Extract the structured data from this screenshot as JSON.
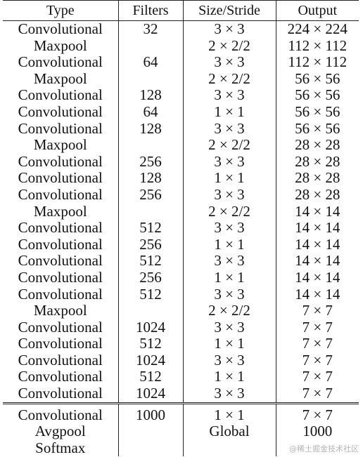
{
  "columns": [
    "Type",
    "Filters",
    "Size/Stride",
    "Output"
  ],
  "rows": [
    [
      "Convolutional",
      "32",
      "3 × 3",
      "224 × 224"
    ],
    [
      "Maxpool",
      "",
      "2 × 2/2",
      "112 × 112"
    ],
    [
      "Convolutional",
      "64",
      "3 × 3",
      "112 × 112"
    ],
    [
      "Maxpool",
      "",
      "2 × 2/2",
      "56 × 56"
    ],
    [
      "Convolutional",
      "128",
      "3 × 3",
      "56 × 56"
    ],
    [
      "Convolutional",
      "64",
      "1 × 1",
      "56 × 56"
    ],
    [
      "Convolutional",
      "128",
      "3 × 3",
      "56 × 56"
    ],
    [
      "Maxpool",
      "",
      "2 × 2/2",
      "28 × 28"
    ],
    [
      "Convolutional",
      "256",
      "3 × 3",
      "28 × 28"
    ],
    [
      "Convolutional",
      "128",
      "1 × 1",
      "28 × 28"
    ],
    [
      "Convolutional",
      "256",
      "3 × 3",
      "28 × 28"
    ],
    [
      "Maxpool",
      "",
      "2 × 2/2",
      "14 × 14"
    ],
    [
      "Convolutional",
      "512",
      "3 × 3",
      "14 × 14"
    ],
    [
      "Convolutional",
      "256",
      "1 × 1",
      "14 × 14"
    ],
    [
      "Convolutional",
      "512",
      "3 × 3",
      "14 × 14"
    ],
    [
      "Convolutional",
      "256",
      "1 × 1",
      "14 × 14"
    ],
    [
      "Convolutional",
      "512",
      "3 × 3",
      "14 × 14"
    ],
    [
      "Maxpool",
      "",
      "2 × 2/2",
      "7 × 7"
    ],
    [
      "Convolutional",
      "1024",
      "3 × 3",
      "7 × 7"
    ],
    [
      "Convolutional",
      "512",
      "1 × 1",
      "7 × 7"
    ],
    [
      "Convolutional",
      "1024",
      "3 × 3",
      "7 × 7"
    ],
    [
      "Convolutional",
      "512",
      "1 × 1",
      "7 × 7"
    ],
    [
      "Convolutional",
      "1024",
      "3 × 3",
      "7 × 7"
    ]
  ],
  "classifier_rows": [
    [
      "Convolutional",
      "1000",
      "1 × 1",
      "7 × 7"
    ],
    [
      "Avgpool",
      "",
      "Global",
      "1000"
    ],
    [
      "Softmax",
      "",
      "",
      ""
    ]
  ],
  "watermark": "@稀土掘金技术社区"
}
